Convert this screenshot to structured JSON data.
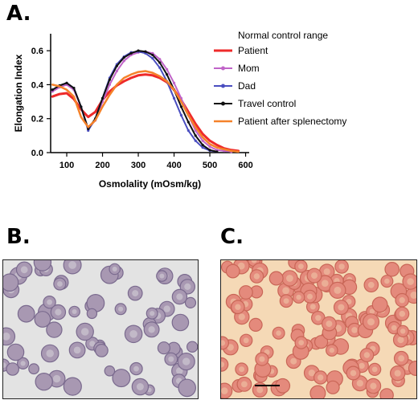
{
  "panels": {
    "a": "A.",
    "b": "B.",
    "c": "C."
  },
  "chart_data": {
    "type": "line",
    "xlabel": "Osmolality (mOsm/kg)",
    "ylabel": "Elongation Index",
    "xlim": [
      55,
      610
    ],
    "ylim": [
      0,
      0.7
    ],
    "xticks": [
      100,
      200,
      300,
      400,
      500,
      600
    ],
    "yticks": [
      0.0,
      0.2,
      0.4,
      0.6
    ],
    "legend_title": "Normal control range",
    "legend_position": "right",
    "grid": false,
    "series": [
      {
        "name": "Patient",
        "color": "#ee2a2a",
        "marker": "none",
        "width": 3,
        "x": [
          60,
          80,
          100,
          120,
          140,
          160,
          180,
          200,
          220,
          240,
          260,
          280,
          300,
          320,
          340,
          360,
          380,
          400,
          420,
          440,
          460,
          480,
          500,
          520,
          540,
          560,
          580
        ],
        "y": [
          0.33,
          0.345,
          0.35,
          0.315,
          0.255,
          0.21,
          0.24,
          0.31,
          0.36,
          0.395,
          0.42,
          0.44,
          0.455,
          0.46,
          0.455,
          0.44,
          0.415,
          0.37,
          0.31,
          0.24,
          0.17,
          0.11,
          0.07,
          0.045,
          0.025,
          0.015,
          0.01
        ]
      },
      {
        "name": "Mom",
        "color": "#c064c8",
        "marker": "dot",
        "width": 2,
        "x": [
          60,
          80,
          100,
          120,
          140,
          160,
          180,
          200,
          220,
          240,
          260,
          280,
          300,
          320,
          340,
          360,
          380,
          400,
          420,
          440,
          460,
          480,
          500,
          520,
          540,
          560
        ],
        "y": [
          0.36,
          0.385,
          0.4,
          0.37,
          0.27,
          0.14,
          0.19,
          0.3,
          0.4,
          0.48,
          0.54,
          0.575,
          0.59,
          0.595,
          0.585,
          0.55,
          0.49,
          0.41,
          0.32,
          0.22,
          0.13,
          0.07,
          0.035,
          0.015,
          0.01,
          0.005
        ]
      },
      {
        "name": "Dad",
        "color": "#4a4ec0",
        "marker": "dot",
        "width": 2,
        "x": [
          60,
          80,
          100,
          120,
          140,
          160,
          180,
          200,
          220,
          240,
          260,
          280,
          300,
          320,
          340,
          360,
          380,
          400,
          420,
          440,
          460,
          480,
          500,
          520
        ],
        "y": [
          0.37,
          0.395,
          0.41,
          0.38,
          0.27,
          0.13,
          0.2,
          0.32,
          0.44,
          0.52,
          0.565,
          0.59,
          0.595,
          0.585,
          0.555,
          0.5,
          0.42,
          0.32,
          0.22,
          0.13,
          0.07,
          0.03,
          0.012,
          0.005
        ]
      },
      {
        "name": "Travel control",
        "color": "#111111",
        "marker": "dot",
        "width": 2,
        "x": [
          60,
          80,
          100,
          120,
          140,
          160,
          180,
          200,
          220,
          240,
          260,
          280,
          300,
          320,
          340,
          360,
          380,
          400,
          420,
          440,
          460,
          480,
          500,
          520
        ],
        "y": [
          0.37,
          0.395,
          0.41,
          0.38,
          0.27,
          0.14,
          0.2,
          0.32,
          0.43,
          0.51,
          0.56,
          0.585,
          0.6,
          0.595,
          0.575,
          0.53,
          0.46,
          0.37,
          0.27,
          0.18,
          0.1,
          0.045,
          0.015,
          0.005
        ]
      },
      {
        "name": "Patient after splenectomy",
        "color": "#f5822a",
        "marker": "none",
        "width": 2.5,
        "x": [
          60,
          80,
          100,
          120,
          140,
          160,
          180,
          200,
          220,
          240,
          260,
          280,
          300,
          320,
          340,
          360,
          380,
          400,
          420,
          440,
          460,
          480,
          500,
          520,
          540,
          560,
          580
        ],
        "y": [
          0.4,
          0.39,
          0.37,
          0.33,
          0.21,
          0.15,
          0.19,
          0.27,
          0.34,
          0.4,
          0.44,
          0.46,
          0.475,
          0.48,
          0.47,
          0.45,
          0.42,
          0.37,
          0.3,
          0.22,
          0.15,
          0.09,
          0.05,
          0.03,
          0.02,
          0.01,
          0.005
        ]
      }
    ]
  },
  "colors": {
    "panel_b_background": "#e3e3e3",
    "panel_b_cell": "#a898b2",
    "panel_b_cell_edge": "#7a6a8e",
    "panel_c_background": "#f5d9b6",
    "panel_c_cell": "#e48a7c",
    "panel_c_cell_edge": "#c96657"
  }
}
